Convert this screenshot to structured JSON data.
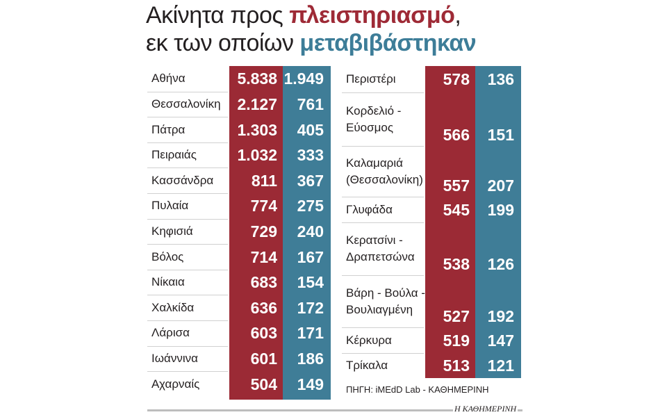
{
  "title": {
    "line1_prefix": "Ακίνητα προς ",
    "line1_highlight": "πλειστηριασμό",
    "line1_suffix": ",",
    "line2_prefix": "εκ των οποίων ",
    "line2_highlight": "μεταβιβάστηκαν"
  },
  "colors": {
    "auction": "#9b2a35",
    "transferred": "#3f7d97",
    "text": "#231f20",
    "background": "#ffffff"
  },
  "chart_data": {
    "type": "table",
    "columns": [
      [
        {
          "city": "Αθήνα",
          "auction": "5.838",
          "transferred": "1.949"
        },
        {
          "city": "Θεσσαλονίκη",
          "auction": "2.127",
          "transferred": "761"
        },
        {
          "city": "Πάτρα",
          "auction": "1.303",
          "transferred": "405"
        },
        {
          "city": "Πειραιάς",
          "auction": "1.032",
          "transferred": "333"
        },
        {
          "city": "Κασσάνδρα",
          "auction": "811",
          "transferred": "367"
        },
        {
          "city": "Πυλαία",
          "auction": "774",
          "transferred": "275"
        },
        {
          "city": "Κηφισιά",
          "auction": "729",
          "transferred": "240"
        },
        {
          "city": "Βόλος",
          "auction": "714",
          "transferred": "167"
        },
        {
          "city": "Νίκαια",
          "auction": "683",
          "transferred": "154"
        },
        {
          "city": "Χαλκίδα",
          "auction": "636",
          "transferred": "172"
        },
        {
          "city": "Λάρισα",
          "auction": "603",
          "transferred": "171"
        },
        {
          "city": "Ιωάννινα",
          "auction": "601",
          "transferred": "186"
        },
        {
          "city": "Αχαρναίς",
          "auction": "504",
          "transferred": "149"
        }
      ],
      [
        {
          "city": "Περιστέρι",
          "auction": "578",
          "transferred": "136"
        },
        {
          "city": "Κορδελιό - Εύοσμος",
          "auction": "566",
          "transferred": "151"
        },
        {
          "city": "Καλαμαριά (Θεσσαλονίκη)",
          "auction": "557",
          "transferred": "207"
        },
        {
          "city": "Γλυφάδα",
          "auction": "545",
          "transferred": "199"
        },
        {
          "city": "Κερατσίνι - Δραπετσώνα",
          "auction": "538",
          "transferred": "126"
        },
        {
          "city": "Βάρη - Βούλα - Βουλιαγμένη",
          "auction": "527",
          "transferred": "192"
        },
        {
          "city": "Κέρκυρα",
          "auction": "519",
          "transferred": "147"
        },
        {
          "city": "Τρίκαλα",
          "auction": "513",
          "transferred": "121"
        }
      ]
    ]
  },
  "source": "ΠΗΓΗ: iMEdD Lab - ΚΑΘΗΜΕΡΙΝΗ",
  "publisher": "Η ΚΑΘΗΜΕΡΙΝΗ"
}
